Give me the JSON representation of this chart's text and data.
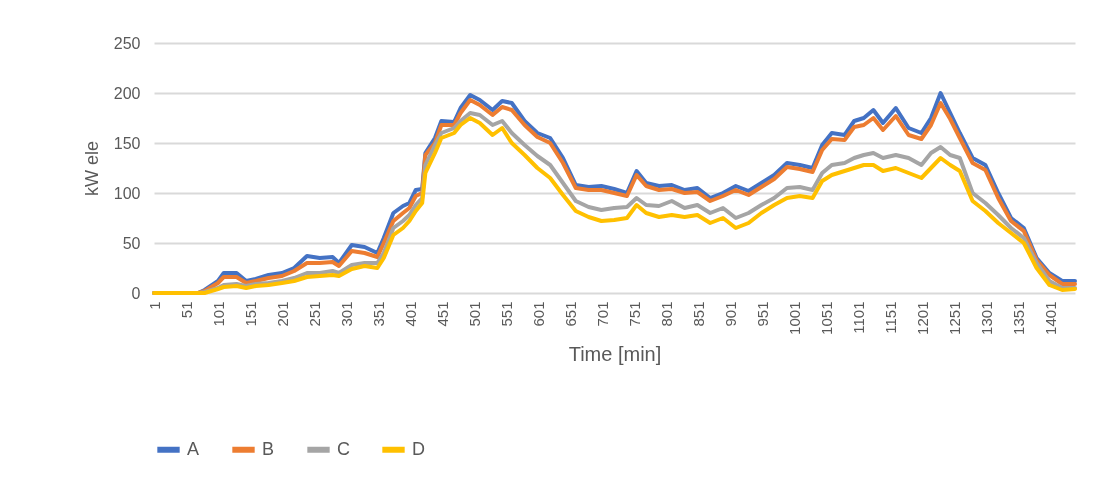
{
  "chart_data": {
    "type": "line",
    "xlabel": "Time [min]",
    "ylabel": "kW ele",
    "x": [
      1,
      51,
      70,
      80,
      101,
      110,
      130,
      145,
      160,
      180,
      201,
      220,
      240,
      260,
      280,
      290,
      310,
      330,
      350,
      360,
      375,
      390,
      400,
      410,
      420,
      425,
      440,
      450,
      470,
      480,
      495,
      510,
      530,
      545,
      560,
      580,
      600,
      620,
      640,
      660,
      680,
      700,
      720,
      740,
      755,
      770,
      790,
      810,
      830,
      850,
      870,
      890,
      910,
      930,
      950,
      970,
      990,
      1010,
      1030,
      1045,
      1060,
      1080,
      1095,
      1110,
      1125,
      1140,
      1160,
      1180,
      1200,
      1215,
      1230,
      1245,
      1260,
      1280,
      1300,
      1320,
      1340,
      1360,
      1380,
      1400,
      1420,
      1440
    ],
    "series": [
      {
        "name": "A",
        "color": "#4472c4",
        "values": [
          0,
          0,
          0,
          3,
          12,
          20,
          20,
          12,
          14,
          18,
          20,
          25,
          37,
          35,
          36,
          30,
          48,
          46,
          40,
          55,
          80,
          87,
          90,
          103,
          104,
          140,
          155,
          172,
          171,
          185,
          198,
          193,
          183,
          192,
          190,
          172,
          160,
          155,
          135,
          108,
          106,
          107,
          104,
          100,
          122,
          110,
          107,
          108,
          103,
          105,
          95,
          100,
          107,
          102,
          110,
          118,
          130,
          128,
          125,
          148,
          160,
          158,
          172,
          175,
          183,
          170,
          185,
          165,
          160,
          175,
          200,
          180,
          160,
          135,
          128,
          100,
          75,
          65,
          35,
          20,
          12,
          12
        ]
      },
      {
        "name": "B",
        "color": "#ed7d31",
        "values": [
          0,
          0,
          0,
          2,
          10,
          16,
          16,
          10,
          12,
          15,
          17,
          22,
          30,
          30,
          31,
          27,
          42,
          40,
          36,
          50,
          72,
          80,
          85,
          97,
          100,
          138,
          150,
          168,
          168,
          180,
          193,
          188,
          178,
          186,
          183,
          168,
          156,
          150,
          130,
          105,
          103,
          103,
          100,
          97,
          118,
          107,
          103,
          104,
          100,
          101,
          92,
          97,
          103,
          98,
          106,
          114,
          126,
          124,
          121,
          143,
          154,
          153,
          166,
          168,
          175,
          163,
          177,
          158,
          154,
          168,
          190,
          174,
          155,
          130,
          123,
          95,
          72,
          62,
          33,
          18,
          9,
          9
        ]
      },
      {
        "name": "C",
        "color": "#a5a5a5",
        "values": [
          0,
          0,
          0,
          1,
          5,
          8,
          9,
          7,
          9,
          10,
          12,
          15,
          20,
          20,
          22,
          20,
          28,
          30,
          30,
          40,
          65,
          72,
          78,
          88,
          95,
          128,
          148,
          160,
          165,
          172,
          180,
          178,
          168,
          172,
          160,
          148,
          137,
          128,
          110,
          92,
          86,
          83,
          85,
          86,
          95,
          88,
          87,
          92,
          85,
          88,
          80,
          85,
          75,
          80,
          88,
          95,
          105,
          106,
          103,
          120,
          128,
          130,
          135,
          138,
          140,
          135,
          138,
          135,
          128,
          140,
          146,
          138,
          135,
          100,
          90,
          78,
          65,
          55,
          30,
          12,
          5,
          5
        ]
      },
      {
        "name": "D",
        "color": "#ffc000",
        "values": [
          0,
          0,
          0,
          0,
          4,
          6,
          7,
          5,
          7,
          8,
          10,
          12,
          16,
          17,
          18,
          17,
          24,
          27,
          25,
          35,
          58,
          65,
          72,
          82,
          90,
          120,
          140,
          155,
          160,
          168,
          175,
          170,
          158,
          165,
          150,
          138,
          125,
          115,
          98,
          82,
          76,
          72,
          73,
          75,
          88,
          80,
          76,
          78,
          76,
          78,
          70,
          75,
          65,
          70,
          80,
          88,
          95,
          97,
          95,
          112,
          118,
          122,
          125,
          128,
          128,
          122,
          125,
          120,
          115,
          125,
          135,
          128,
          122,
          92,
          82,
          70,
          60,
          50,
          25,
          8,
          3,
          4
        ]
      }
    ],
    "xlim": [
      1,
      1440
    ],
    "xticks": [
      1,
      51,
      101,
      151,
      201,
      251,
      301,
      351,
      401,
      451,
      501,
      551,
      601,
      651,
      701,
      751,
      801,
      851,
      901,
      951,
      1001,
      1051,
      1101,
      1151,
      1201,
      1251,
      1301,
      1351,
      1401
    ],
    "ylim": [
      0,
      250
    ],
    "yticks": [
      0,
      50,
      100,
      150,
      200,
      250
    ],
    "grid": "y",
    "legend": "bottom",
    "line_style": "solid"
  }
}
